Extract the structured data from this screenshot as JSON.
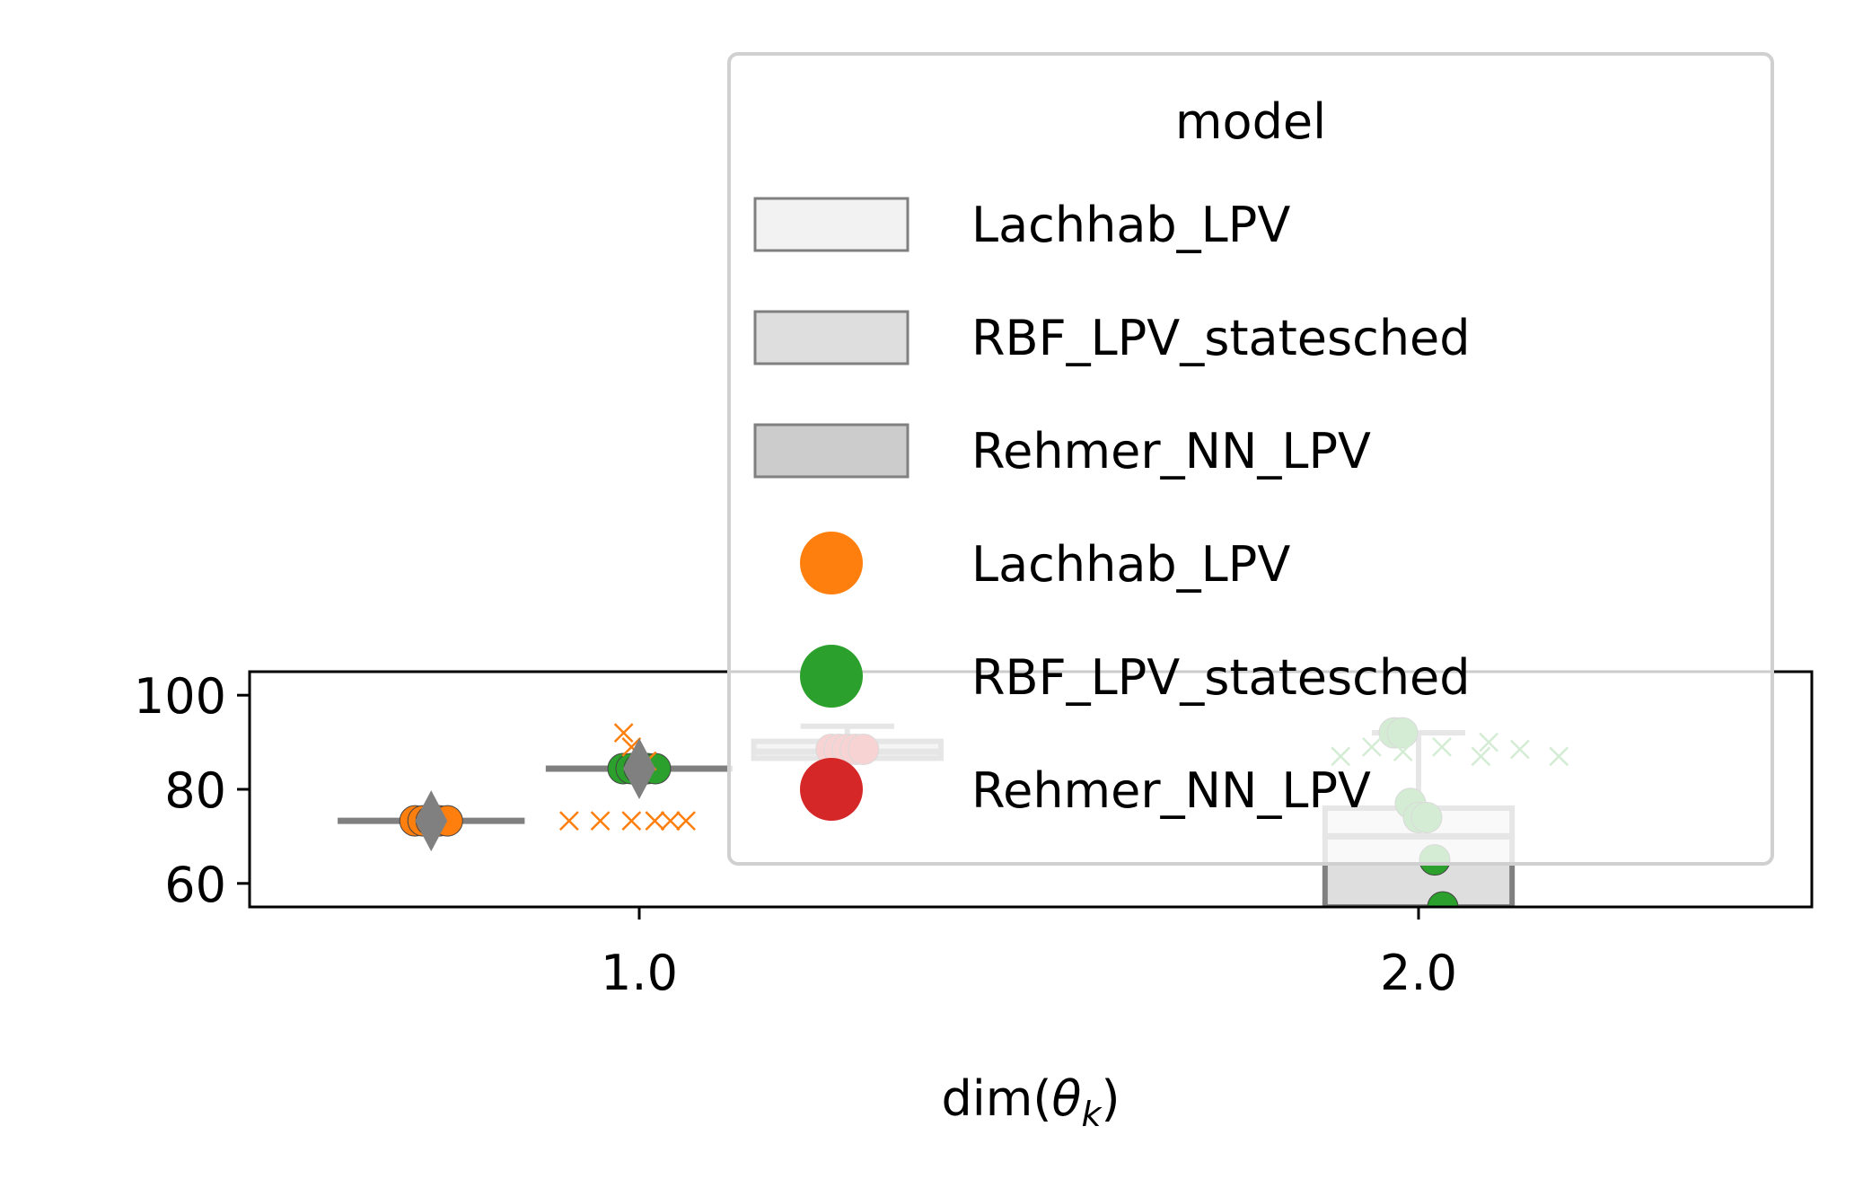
{
  "chart_data": {
    "type": "box",
    "xlabel": "dim(θ_k)",
    "xlabel_main": "dim(",
    "xlabel_symbol": "θ",
    "xlabel_sub": "k",
    "xlabel_close": ")",
    "ylabel": "",
    "ylim": [
      55,
      105
    ],
    "x_ticks": [
      "1.0",
      "2.0"
    ],
    "y_ticks": [
      60,
      80,
      100
    ],
    "grid": false,
    "legend": {
      "title": "model",
      "placement": "top-right",
      "box_entries": [
        {
          "label": "Lachhab_LPV",
          "fill": "#f2f2f2"
        },
        {
          "label": "RBF_LPV_statesched",
          "fill": "#dedede"
        },
        {
          "label": "Rehmer_NN_LPV",
          "fill": "#cccccc"
        }
      ],
      "point_entries": [
        {
          "label": "Lachhab_LPV",
          "color": "#ff7f0e"
        },
        {
          "label": "RBF_LPV_statesched",
          "color": "#2ca02c"
        },
        {
          "label": "Rehmer_NN_LPV",
          "color": "#d62728"
        }
      ]
    },
    "boxes": [
      {
        "category": "1.0",
        "series": "Lachhab_LPV",
        "offset": -0.267,
        "q1": 73.3,
        "median": 73.3,
        "q3": 73.3,
        "whisker_low": 73.3,
        "whisker_high": 73.3,
        "mean": 73.3,
        "fill": "#f2f2f2",
        "edge": "#808080"
      },
      {
        "category": "1.0",
        "series": "RBF_LPV_statesched",
        "offset": 0.0,
        "q1": 84.4,
        "median": 84.4,
        "q3": 84.4,
        "whisker_low": 84.4,
        "whisker_high": 84.4,
        "mean": 84.4,
        "fill": "#dedede",
        "edge": "#808080"
      },
      {
        "category": "1.0",
        "series": "Rehmer_NN_LPV",
        "offset": 0.267,
        "q1": 86.6,
        "median": 88.0,
        "q3": 90.2,
        "whisker_low": 86.6,
        "whisker_high": 93.4,
        "mean": 88.5,
        "fill": "#cccccc",
        "edge": "#808080"
      },
      {
        "category": "2.0",
        "series": "RBF_LPV_statesched",
        "offset": 0.0,
        "q1": 55.0,
        "median": 70.0,
        "q3": 76.0,
        "whisker_low": 55.0,
        "whisker_high": 92.0,
        "mean": 73.0,
        "fill": "#dedede",
        "edge": "#808080"
      }
    ],
    "points": [
      {
        "category": "1.0",
        "series": "Lachhab_LPV",
        "offset": -0.267,
        "y": [
          73.3,
          73.3,
          73.3,
          73.3,
          73.3
        ],
        "color": "#ff7f0e"
      },
      {
        "category": "1.0",
        "series": "RBF_LPV_statesched",
        "offset": 0.0,
        "y": [
          84.4,
          84.4,
          84.4,
          84.4,
          84.4
        ],
        "color": "#2ca02c"
      },
      {
        "category": "1.0",
        "series": "Rehmer_NN_LPV",
        "offset": 0.267,
        "y": [
          88.5,
          88.5,
          88.5,
          88.5,
          88.5
        ],
        "color": "#d62728"
      },
      {
        "category": "2.0",
        "series": "RBF_LPV_statesched",
        "offset": 0.0,
        "y": [
          92.0,
          92.0,
          77.0,
          74.0,
          74.0,
          65.0,
          55.0
        ],
        "color": "#2ca02c"
      }
    ],
    "crosses": [
      {
        "category": "1.0",
        "series": "Lachhab_LPV",
        "color": "#ff7f0e",
        "points": [
          [
            -0.09,
            73.3
          ],
          [
            -0.05,
            73.3
          ],
          [
            -0.01,
            73.3
          ],
          [
            0.02,
            73.3
          ],
          [
            0.04,
            73.3
          ],
          [
            0.06,
            73.3
          ],
          [
            -0.02,
            92.0
          ],
          [
            -0.01,
            89.0
          ],
          [
            0.01,
            86.0
          ]
        ]
      },
      {
        "category": "2.0",
        "series": "RBF_LPV_statesched",
        "color": "#2ca02c",
        "points": [
          [
            -0.1,
            87.0
          ],
          [
            -0.06,
            89.0
          ],
          [
            -0.02,
            88.0
          ],
          [
            0.03,
            89.0
          ],
          [
            0.08,
            87.0
          ],
          [
            0.13,
            88.5
          ],
          [
            0.18,
            87.0
          ],
          [
            0.09,
            90.0
          ]
        ]
      }
    ]
  }
}
